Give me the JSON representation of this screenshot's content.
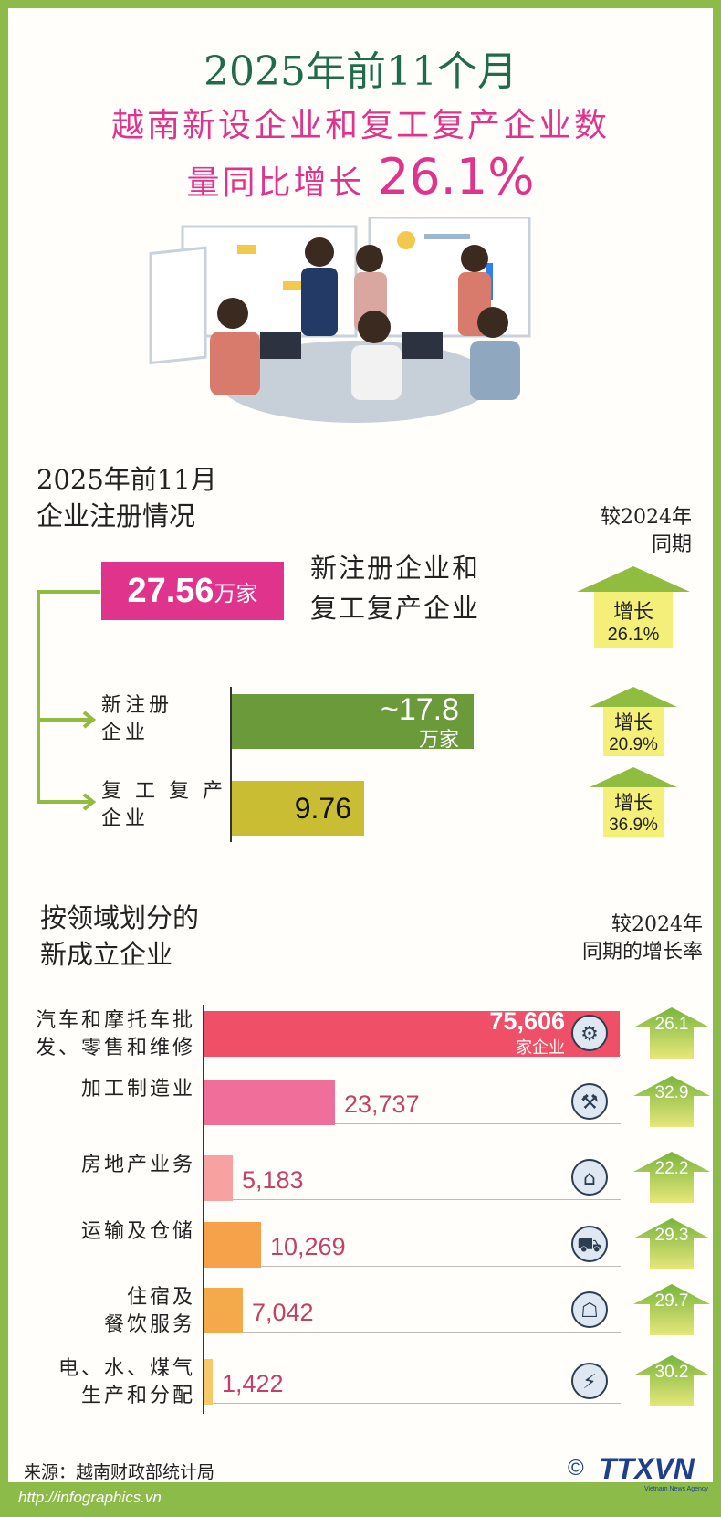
{
  "header": {
    "line1": "2025年前11个月",
    "line2": "越南新设企业和复工复产企业数",
    "line3_text": "量同比增长",
    "line3_pct": "26.1%"
  },
  "registration": {
    "title_line1": "2025年前11月",
    "title_line2": "企业注册情况",
    "compare_line1": "较2024年",
    "compare_line2": "同期",
    "total_value": "27.56",
    "total_unit": "万家",
    "total_label_line1": "新注册企业和",
    "total_label_line2": "复工复产企业",
    "total_growth_word": "增长",
    "total_growth": "26.1%",
    "rows": [
      {
        "label_line1": "新注册",
        "label_line2": "企业",
        "value_text": "~17.8",
        "unit": "万家",
        "value": 17.8,
        "growth_word": "增长",
        "growth": "20.9%"
      },
      {
        "label_line1": "复 工 复 产",
        "label_line2": "企业",
        "value_text": "9.76",
        "unit": "",
        "value": 9.76,
        "growth_word": "增长",
        "growth": "36.9%"
      }
    ]
  },
  "sectors": {
    "title_line1": "按领域划分的",
    "title_line2": "新成立企业",
    "compare_line1": "较2024年",
    "compare_line2": "同期的增长率",
    "first_unit": "家企业"
  },
  "chart_data": {
    "type": "bar",
    "orientation": "horizontal",
    "categories": [
      [
        "汽车和摩托车批",
        "发、零售和维修"
      ],
      [
        "加工制造业"
      ],
      [
        "房地产业务"
      ],
      [
        "运输及仓储"
      ],
      [
        "住宿及",
        "餐饮服务"
      ],
      [
        "电、水、煤气",
        "生产和分配"
      ]
    ],
    "values": [
      75606,
      23737,
      5183,
      10269,
      7042,
      1422
    ],
    "value_labels": [
      "75,606",
      "23,737",
      "5,183",
      "10,269",
      "7,042",
      "1,422"
    ],
    "growth_rates": [
      "26.1",
      "32.9",
      "22.2",
      "29.3",
      "29.7",
      "30.2"
    ],
    "icons": [
      "car-repair-icon",
      "robot-arm-icon",
      "house-icon",
      "delivery-truck-icon",
      "hotel-icon",
      "utilities-icon"
    ],
    "colors": [
      "#ef4f67",
      "#ef6f9a",
      "#f7a1a1",
      "#f5a24a",
      "#f4a94a",
      "#f7c96a"
    ],
    "title": "",
    "xlabel": "",
    "ylabel": ""
  },
  "footer": {
    "source": "来源：越南财政部统计局",
    "url": "http://infographics.vn",
    "copyright": "©",
    "logo": "TTXVN",
    "logo_sub": "Vietnam News Agency"
  },
  "colors": {
    "border": "#8dbb4a",
    "title_green": "#1f6b4a",
    "accent_pink": "#e0338c",
    "bar_green": "#6a9a3a",
    "bar_olive": "#c9bd34",
    "arrow_green": "#90bd3f",
    "arrow_yellow": "#f3ef78"
  }
}
